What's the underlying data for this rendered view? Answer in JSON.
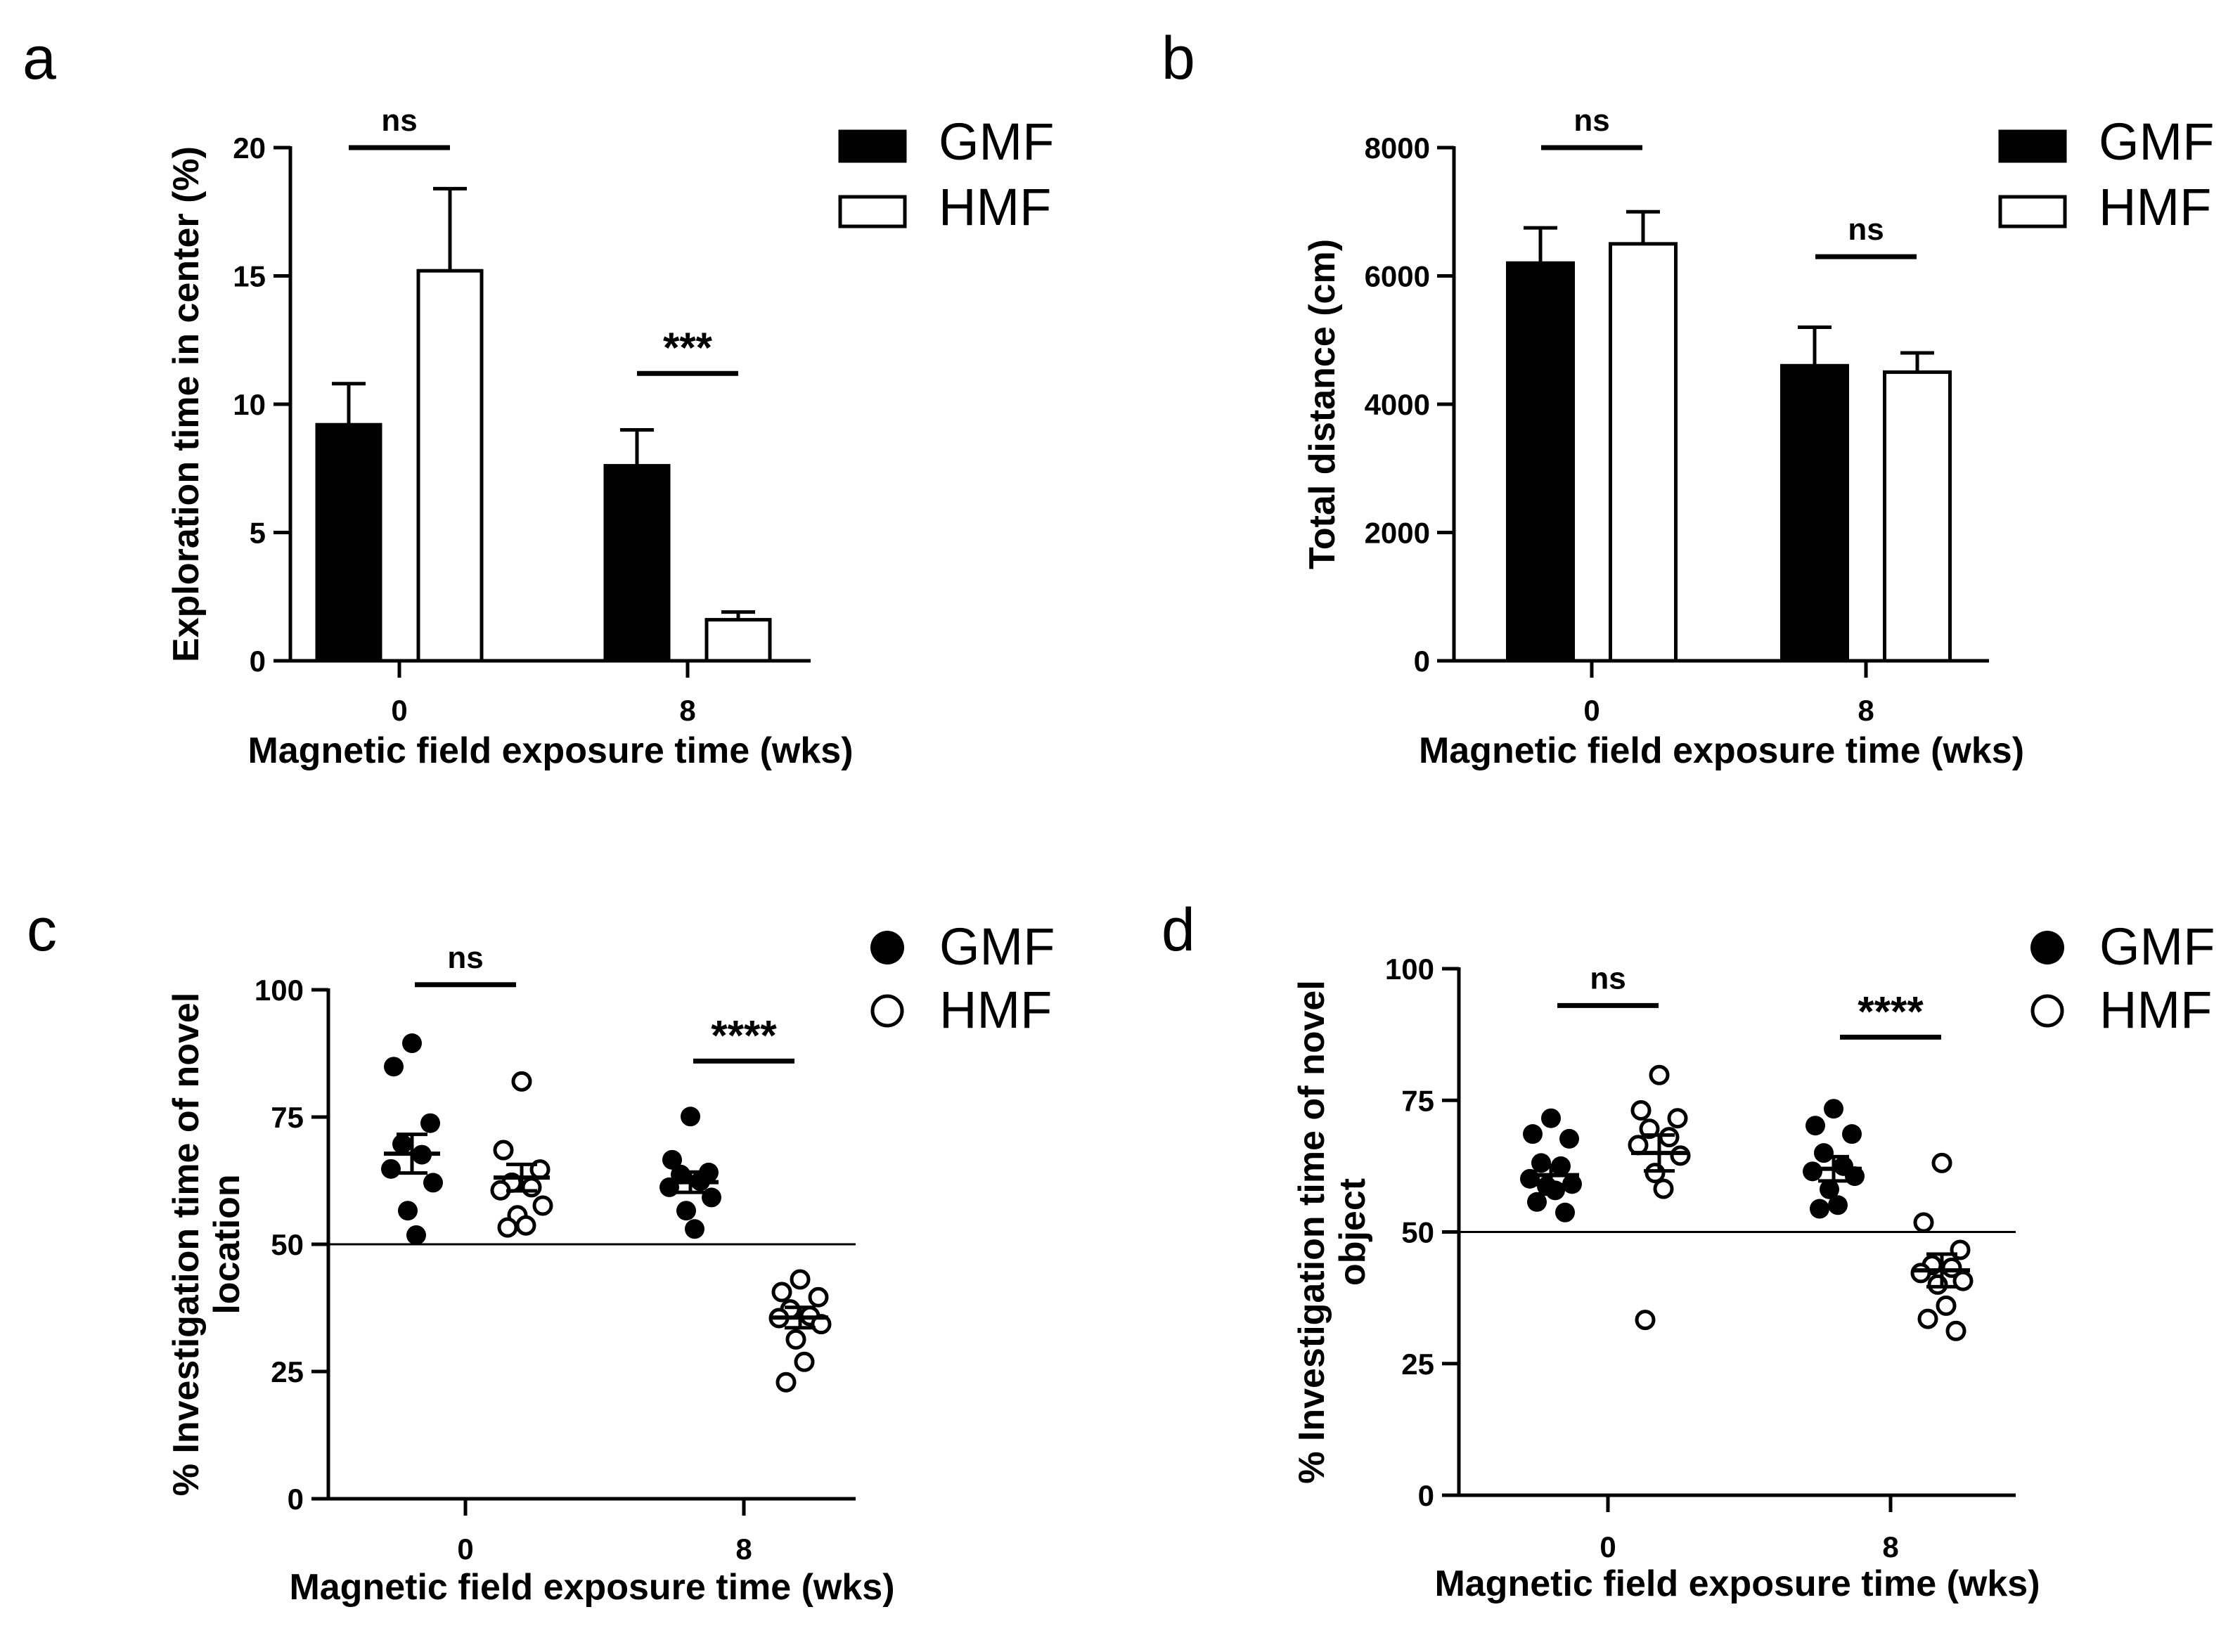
{
  "chart_data": [
    {
      "panel": "a",
      "type": "bar",
      "categories": [
        "0",
        "8"
      ],
      "series": [
        {
          "name": "GMF",
          "values": [
            9.2,
            7.6
          ],
          "errors": [
            1.6,
            1.4
          ],
          "fill": "#000000"
        },
        {
          "name": "HMF",
          "values": [
            15.2,
            1.6
          ],
          "errors": [
            3.2,
            0.3
          ],
          "fill": "#ffffff"
        }
      ],
      "xlabel": "Magnetic field exposure time (wks)",
      "ylabel": "Exploration time in center (%)",
      "ylim": [
        0,
        20
      ],
      "yticks": [
        "0",
        "5",
        "10",
        "15",
        "20"
      ],
      "legend": [
        "GMF",
        "HMF"
      ],
      "legend_position": "top-right",
      "annotations": [
        {
          "category": "0",
          "text": "ns",
          "y": 20
        },
        {
          "category": "8",
          "text": "***",
          "y": 11.2
        }
      ]
    },
    {
      "panel": "b",
      "type": "bar",
      "categories": [
        "0",
        "8"
      ],
      "series": [
        {
          "name": "GMF",
          "values": [
            6200,
            4600
          ],
          "errors": [
            550,
            600
          ],
          "fill": "#000000"
        },
        {
          "name": "HMF",
          "values": [
            6500,
            4500
          ],
          "errors": [
            500,
            300
          ],
          "fill": "#ffffff"
        }
      ],
      "xlabel": "Magnetic field exposure time (wks)",
      "ylabel": "Total distance (cm)",
      "ylim": [
        0,
        8000
      ],
      "yticks": [
        "0",
        "2000",
        "4000",
        "6000",
        "8000"
      ],
      "legend": [
        "GMF",
        "HMF"
      ],
      "legend_position": "top-right",
      "annotations": [
        {
          "category": "0",
          "text": "ns",
          "y": 8000
        },
        {
          "category": "8",
          "text": "ns",
          "y": 6300
        }
      ]
    },
    {
      "panel": "c",
      "type": "scatter",
      "categories": [
        "0",
        "8"
      ],
      "series": [
        {
          "name": "GMF",
          "filled": true,
          "points": [
            [
              89.5,
              84.9,
              73.8,
              69.7,
              67.6,
              64.8,
              62.1,
              56.6,
              51.8
            ],
            [
              75.1,
              66.6,
              64.1,
              63.7,
              62.4,
              61.2,
              59.2,
              56.6,
              53.0
            ]
          ],
          "means": [
            67.8,
            62.2
          ],
          "sems": [
            3.8,
            2.0
          ]
        },
        {
          "name": "HMF",
          "filled": false,
          "points": [
            [
              82.0,
              68.5,
              64.7,
              62.1,
              61.2,
              60.6,
              57.6,
              55.7,
              53.7,
              53.3
            ],
            [
              43.1,
              40.6,
              39.6,
              37.2,
              35.9,
              35.5,
              34.3,
              31.3,
              26.9,
              22.9
            ]
          ],
          "means": [
            63.1,
            35.6
          ],
          "sems": [
            2.6,
            2.0
          ]
        }
      ],
      "reference_line": 50,
      "xlabel": "Magnetic field exposure time (wks)",
      "ylabel": "% Investigation time of novel location",
      "ylabel_lines": [
        "% Investigation time of novel",
        "location"
      ],
      "ylim": [
        0,
        100
      ],
      "yticks": [
        "0",
        "25",
        "50",
        "75",
        "100"
      ],
      "legend": [
        "GMF",
        "HMF"
      ],
      "legend_position": "top-right",
      "annotations": [
        {
          "category": "0",
          "text": "ns",
          "y": 101
        },
        {
          "category": "8",
          "text": "****",
          "y": 86
        }
      ]
    },
    {
      "panel": "d",
      "type": "scatter",
      "categories": [
        "0",
        "8"
      ],
      "series": [
        {
          "name": "GMF",
          "filled": true,
          "points": [
            [
              71.6,
              68.6,
              67.7,
              63.1,
              62.5,
              60.1,
              59.1,
              58.7,
              57.9,
              55.7,
              53.7
            ],
            [
              73.4,
              70.2,
              68.6,
              65.0,
              62.5,
              61.5,
              60.6,
              58.1,
              55.1,
              54.4
            ]
          ],
          "means": [
            60.8,
            62.0
          ],
          "sems": [
            1.8,
            2.3
          ]
        },
        {
          "name": "HMF",
          "filled": false,
          "points": [
            [
              79.8,
              73.1,
              71.6,
              69.6,
              68.0,
              66.5,
              64.5,
              61.2,
              58.2,
              33.3
            ],
            [
              63.1,
              51.8,
              46.6,
              43.7,
              43.2,
              42.2,
              40.7,
              40.0,
              36.0,
              33.5,
              31.2
            ]
          ],
          "means": [
            65.0,
            42.7
          ],
          "sems": [
            3.4,
            3.1
          ]
        }
      ],
      "reference_line": 50,
      "xlabel": "Magnetic field exposure time (wks)",
      "ylabel": "% Investigation time of novel object",
      "ylabel_lines": [
        "% Investigation time of novel",
        "object"
      ],
      "ylim": [
        0,
        100
      ],
      "yticks": [
        "0",
        "25",
        "50",
        "75",
        "100"
      ],
      "legend": [
        "GMF",
        "HMF"
      ],
      "legend_position": "top-right",
      "annotations": [
        {
          "category": "0",
          "text": "ns",
          "y": 93
        },
        {
          "category": "8",
          "text": "****",
          "y": 87
        }
      ]
    }
  ]
}
